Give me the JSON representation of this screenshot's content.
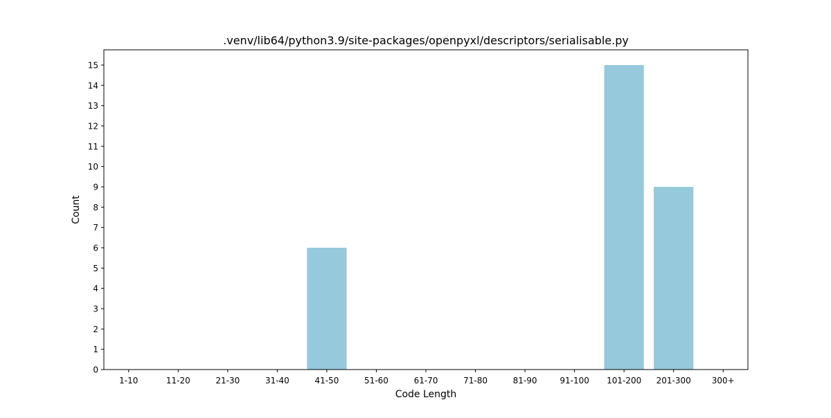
{
  "chart_data": {
    "type": "bar",
    "title": ".venv/lib64/python3.9/site-packages/openpyxl/descriptors/serialisable.py",
    "xlabel": "Code Length",
    "ylabel": "Count",
    "categories": [
      "1-10",
      "11-20",
      "21-30",
      "31-40",
      "41-50",
      "51-60",
      "61-70",
      "71-80",
      "81-90",
      "91-100",
      "101-200",
      "201-300",
      "300+"
    ],
    "values": [
      0,
      0,
      0,
      0,
      6,
      0,
      0,
      0,
      0,
      0,
      15,
      9,
      0
    ],
    "ylim": [
      0,
      15.75
    ],
    "yticks": [
      0,
      1,
      2,
      3,
      4,
      5,
      6,
      7,
      8,
      9,
      10,
      11,
      12,
      13,
      14,
      15
    ],
    "bar_color": "#96c9dc",
    "grid": false,
    "legend": "none"
  }
}
